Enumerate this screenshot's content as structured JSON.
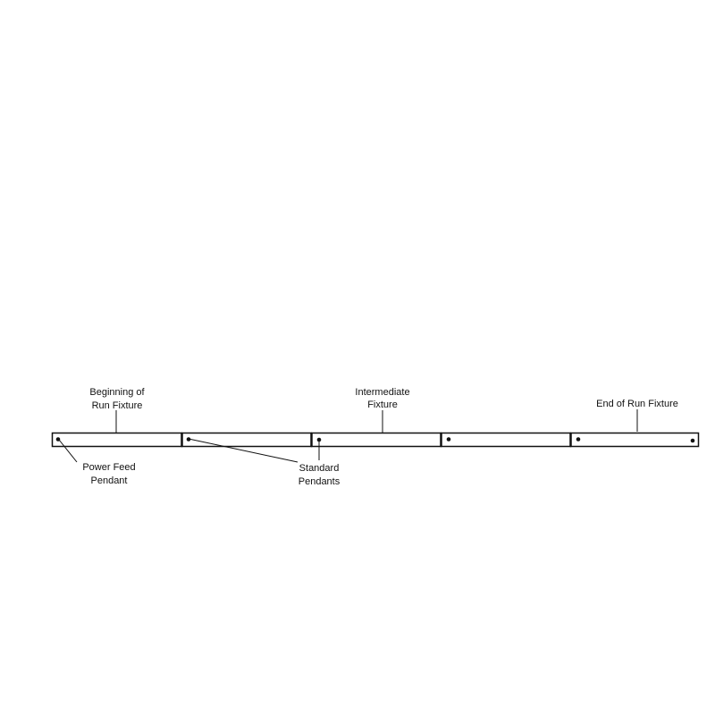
{
  "labels": {
    "beginning": [
      "Beginning of",
      "Run Fixture"
    ],
    "intermediate": [
      "Intermediate",
      "Fixture"
    ],
    "end": [
      "End of Run Fixture"
    ],
    "power_feed": [
      "Power Feed",
      "Pendant"
    ],
    "standard": [
      "Standard",
      "Pendants"
    ]
  },
  "colors": {
    "line": "#111111",
    "background": "#ffffff"
  }
}
